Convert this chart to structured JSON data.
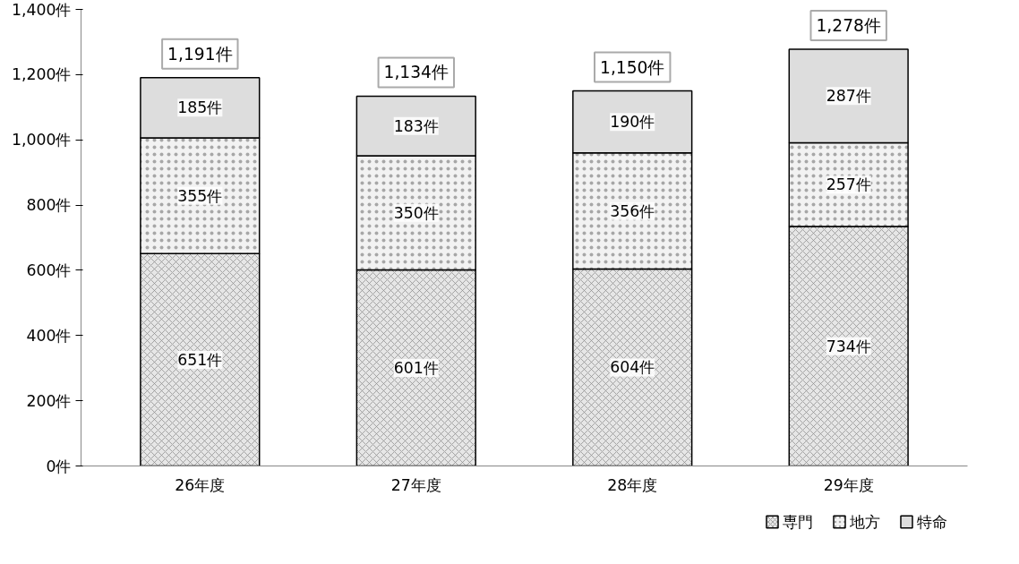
{
  "chart_data": {
    "type": "bar",
    "stacked": true,
    "categories": [
      "26年度",
      "27年度",
      "28年度",
      "29年度"
    ],
    "series": [
      {
        "name": "専門",
        "color": "#e6e6e6",
        "values": [
          651,
          601,
          604,
          734
        ],
        "value_labels": [
          "651件",
          "601件",
          "604件",
          "734件"
        ]
      },
      {
        "name": "地方",
        "color": "#f2f2f2",
        "values": [
          355,
          350,
          356,
          257
        ],
        "value_labels": [
          "355件",
          "350件",
          "356件",
          "257件"
        ]
      },
      {
        "name": "特命",
        "color": "#dddddd",
        "values": [
          185,
          183,
          190,
          287
        ],
        "value_labels": [
          "185件",
          "183件",
          "190件",
          "287件"
        ]
      }
    ],
    "totals": [
      "1,191件",
      "1,134件",
      "1,150件",
      "1,278件"
    ],
    "ylim": [
      0,
      1400
    ],
    "yticks": [
      {
        "value": 0,
        "label": "0件"
      },
      {
        "value": 200,
        "label": "200件"
      },
      {
        "value": 400,
        "label": "400件"
      },
      {
        "value": 600,
        "label": "600件"
      },
      {
        "value": 800,
        "label": "800件"
      },
      {
        "value": 1000,
        "label": "1,000件"
      },
      {
        "value": 1200,
        "label": "1,200件"
      },
      {
        "value": 1400,
        "label": "1,400件"
      }
    ],
    "grid": false,
    "legend": "bottom right"
  }
}
